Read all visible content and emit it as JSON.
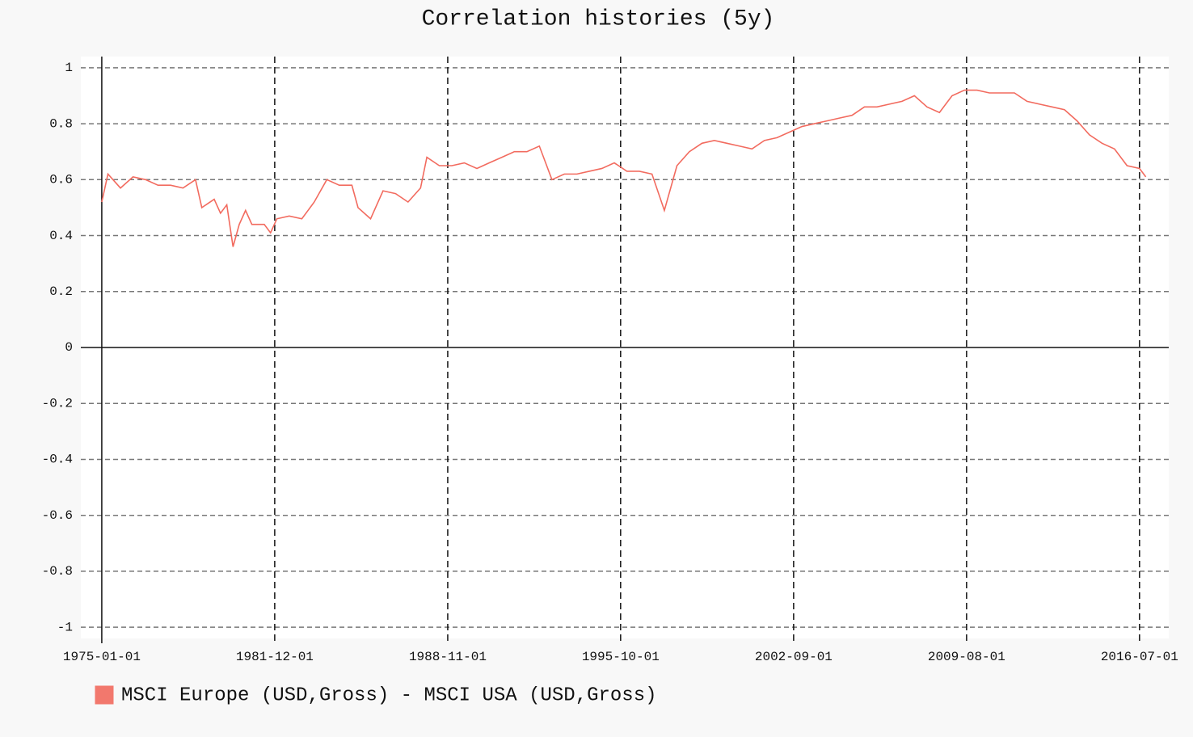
{
  "chart_data": {
    "type": "line",
    "title": "Correlation histories (5y)",
    "x": [
      "1975-01-01",
      "1975-04-01",
      "1975-10-01",
      "1976-04-01",
      "1976-10-01",
      "1977-04-01",
      "1977-10-01",
      "1978-04-01",
      "1978-10-01",
      "1979-01-01",
      "1979-07-01",
      "1979-10-01",
      "1980-01-01",
      "1980-04-01",
      "1980-07-01",
      "1980-10-01",
      "1981-01-01",
      "1981-07-01",
      "1981-10-01",
      "1982-01-01",
      "1982-07-01",
      "1983-01-01",
      "1983-07-01",
      "1984-01-01",
      "1984-07-01",
      "1985-01-01",
      "1985-04-01",
      "1985-10-01",
      "1986-04-01",
      "1986-10-01",
      "1987-04-01",
      "1987-10-01",
      "1988-01-01",
      "1988-07-01",
      "1989-01-01",
      "1989-07-01",
      "1990-01-01",
      "1990-07-01",
      "1991-01-01",
      "1991-07-01",
      "1992-01-01",
      "1992-07-01",
      "1993-01-01",
      "1993-07-01",
      "1994-01-01",
      "1994-07-01",
      "1995-01-01",
      "1995-07-01",
      "1996-01-01",
      "1996-07-01",
      "1997-01-01",
      "1997-07-01",
      "1998-01-01",
      "1998-07-01",
      "1999-01-01",
      "1999-07-01",
      "2000-01-01",
      "2000-07-01",
      "2001-01-01",
      "2001-07-01",
      "2002-01-01",
      "2002-07-01",
      "2003-01-01",
      "2003-07-01",
      "2004-01-01",
      "2004-07-01",
      "2005-01-01",
      "2005-07-01",
      "2006-01-01",
      "2006-07-01",
      "2007-01-01",
      "2007-07-01",
      "2008-01-01",
      "2008-07-01",
      "2009-01-01",
      "2009-07-01",
      "2010-01-01",
      "2010-07-01",
      "2011-01-01",
      "2011-07-01",
      "2012-01-01",
      "2012-07-01",
      "2013-01-01",
      "2013-07-01",
      "2014-01-01",
      "2014-07-01",
      "2015-01-01",
      "2015-07-01",
      "2016-01-01",
      "2016-07-01",
      "2016-10-01"
    ],
    "series": [
      {
        "name": "MSCI Europe (USD,Gross) - MSCI USA (USD,Gross)",
        "color": "#f26b5f",
        "values": [
          0.52,
          0.62,
          0.57,
          0.61,
          0.6,
          0.58,
          0.58,
          0.57,
          0.6,
          0.5,
          0.53,
          0.48,
          0.51,
          0.36,
          0.44,
          0.49,
          0.44,
          0.44,
          0.41,
          0.46,
          0.47,
          0.46,
          0.52,
          0.6,
          0.58,
          0.58,
          0.5,
          0.46,
          0.56,
          0.55,
          0.52,
          0.57,
          0.68,
          0.65,
          0.65,
          0.66,
          0.64,
          0.66,
          0.68,
          0.7,
          0.7,
          0.72,
          0.6,
          0.62,
          0.62,
          0.63,
          0.64,
          0.66,
          0.63,
          0.63,
          0.62,
          0.49,
          0.65,
          0.7,
          0.73,
          0.74,
          0.73,
          0.72,
          0.71,
          0.74,
          0.75,
          0.77,
          0.79,
          0.8,
          0.81,
          0.82,
          0.83,
          0.86,
          0.86,
          0.87,
          0.88,
          0.9,
          0.86,
          0.84,
          0.9,
          0.92,
          0.92,
          0.91,
          0.91,
          0.91,
          0.88,
          0.87,
          0.86,
          0.85,
          0.81,
          0.76,
          0.73,
          0.71,
          0.65,
          0.64,
          0.61
        ]
      }
    ],
    "xlim": [
      "1974-03-01",
      "2017-09-01"
    ],
    "xticks": [
      "1975-01-01",
      "1981-12-01",
      "1988-11-01",
      "1995-10-01",
      "2002-09-01",
      "2009-08-01",
      "2016-07-01"
    ],
    "ylim": [
      -1.04,
      1.04
    ],
    "yticks": [
      1,
      0.8,
      0.6,
      0.4,
      0.2,
      0,
      -0.2,
      -0.4,
      -0.6,
      -0.8,
      -1
    ],
    "grid": true,
    "legend": "bottom-left"
  }
}
